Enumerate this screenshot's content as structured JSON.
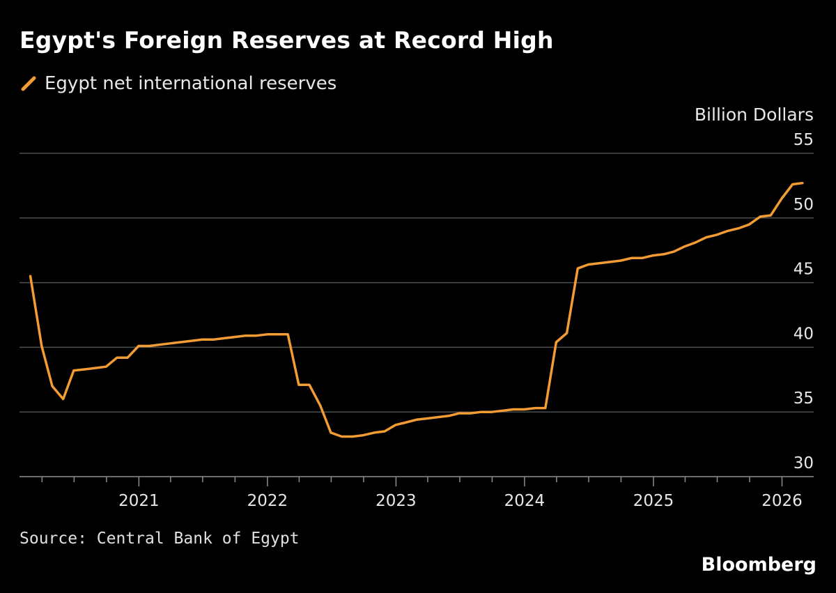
{
  "title": "Egypt's Foreign Reserves at Record High",
  "source": "Source: Central Bank of Egypt",
  "brand": "Bloomberg",
  "colors": {
    "background": "#000000",
    "series": "#f39c34",
    "grid": "#4a4f4f",
    "text": "#e8e8e8"
  },
  "chart_data": {
    "type": "line",
    "title": "Egypt's Foreign Reserves at Record High",
    "ylabel": "Billion Dollars",
    "xlabel": "",
    "ylim": [
      30,
      55
    ],
    "xlim": [
      "2020-02-01",
      "2026-04-01"
    ],
    "yticks": [
      30,
      35,
      40,
      45,
      50,
      55
    ],
    "xtick_labels": [
      "2021",
      "2022",
      "2023",
      "2024",
      "2025",
      "2026"
    ],
    "grid": "horizontal",
    "legend_position": "top-left",
    "series": [
      {
        "name": "Egypt net international reserves",
        "color": "#f39c34",
        "points": [
          [
            "2020-02-28",
            45.5
          ],
          [
            "2020-03-31",
            40.1
          ],
          [
            "2020-04-30",
            37.0
          ],
          [
            "2020-05-31",
            36.0
          ],
          [
            "2020-06-30",
            38.2
          ],
          [
            "2020-07-31",
            38.3
          ],
          [
            "2020-08-31",
            38.4
          ],
          [
            "2020-09-30",
            38.5
          ],
          [
            "2020-10-31",
            39.2
          ],
          [
            "2020-11-30",
            39.2
          ],
          [
            "2020-12-31",
            40.1
          ],
          [
            "2021-01-31",
            40.1
          ],
          [
            "2021-02-28",
            40.2
          ],
          [
            "2021-03-31",
            40.3
          ],
          [
            "2021-04-30",
            40.4
          ],
          [
            "2021-05-31",
            40.5
          ],
          [
            "2021-06-30",
            40.6
          ],
          [
            "2021-07-31",
            40.6
          ],
          [
            "2021-08-31",
            40.7
          ],
          [
            "2021-09-30",
            40.8
          ],
          [
            "2021-10-31",
            40.9
          ],
          [
            "2021-11-30",
            40.9
          ],
          [
            "2021-12-31",
            41.0
          ],
          [
            "2022-01-31",
            41.0
          ],
          [
            "2022-02-28",
            41.0
          ],
          [
            "2022-03-31",
            37.1
          ],
          [
            "2022-04-30",
            37.1
          ],
          [
            "2022-05-31",
            35.5
          ],
          [
            "2022-06-30",
            33.4
          ],
          [
            "2022-07-31",
            33.1
          ],
          [
            "2022-08-31",
            33.1
          ],
          [
            "2022-09-30",
            33.2
          ],
          [
            "2022-10-31",
            33.4
          ],
          [
            "2022-11-30",
            33.5
          ],
          [
            "2022-12-31",
            34.0
          ],
          [
            "2023-01-31",
            34.2
          ],
          [
            "2023-02-28",
            34.4
          ],
          [
            "2023-03-31",
            34.5
          ],
          [
            "2023-04-30",
            34.6
          ],
          [
            "2023-05-31",
            34.7
          ],
          [
            "2023-06-30",
            34.9
          ],
          [
            "2023-07-31",
            34.9
          ],
          [
            "2023-08-31",
            35.0
          ],
          [
            "2023-09-30",
            35.0
          ],
          [
            "2023-10-31",
            35.1
          ],
          [
            "2023-11-30",
            35.2
          ],
          [
            "2023-12-31",
            35.2
          ],
          [
            "2024-01-31",
            35.3
          ],
          [
            "2024-02-29",
            35.3
          ],
          [
            "2024-03-31",
            40.4
          ],
          [
            "2024-04-30",
            41.1
          ],
          [
            "2024-05-31",
            46.1
          ],
          [
            "2024-06-30",
            46.4
          ],
          [
            "2024-07-31",
            46.5
          ],
          [
            "2024-08-31",
            46.6
          ],
          [
            "2024-09-30",
            46.7
          ],
          [
            "2024-10-31",
            46.9
          ],
          [
            "2024-11-30",
            46.9
          ],
          [
            "2024-12-31",
            47.1
          ],
          [
            "2025-01-31",
            47.2
          ],
          [
            "2025-02-28",
            47.4
          ],
          [
            "2025-03-31",
            47.8
          ],
          [
            "2025-04-30",
            48.1
          ],
          [
            "2025-05-31",
            48.5
          ],
          [
            "2025-06-30",
            48.7
          ],
          [
            "2025-07-31",
            49.0
          ],
          [
            "2025-08-31",
            49.2
          ],
          [
            "2025-09-30",
            49.5
          ],
          [
            "2025-10-31",
            50.1
          ],
          [
            "2025-11-30",
            50.2
          ],
          [
            "2025-12-31",
            51.5
          ],
          [
            "2026-01-31",
            52.6
          ],
          [
            "2026-02-28",
            52.7
          ]
        ]
      }
    ]
  }
}
